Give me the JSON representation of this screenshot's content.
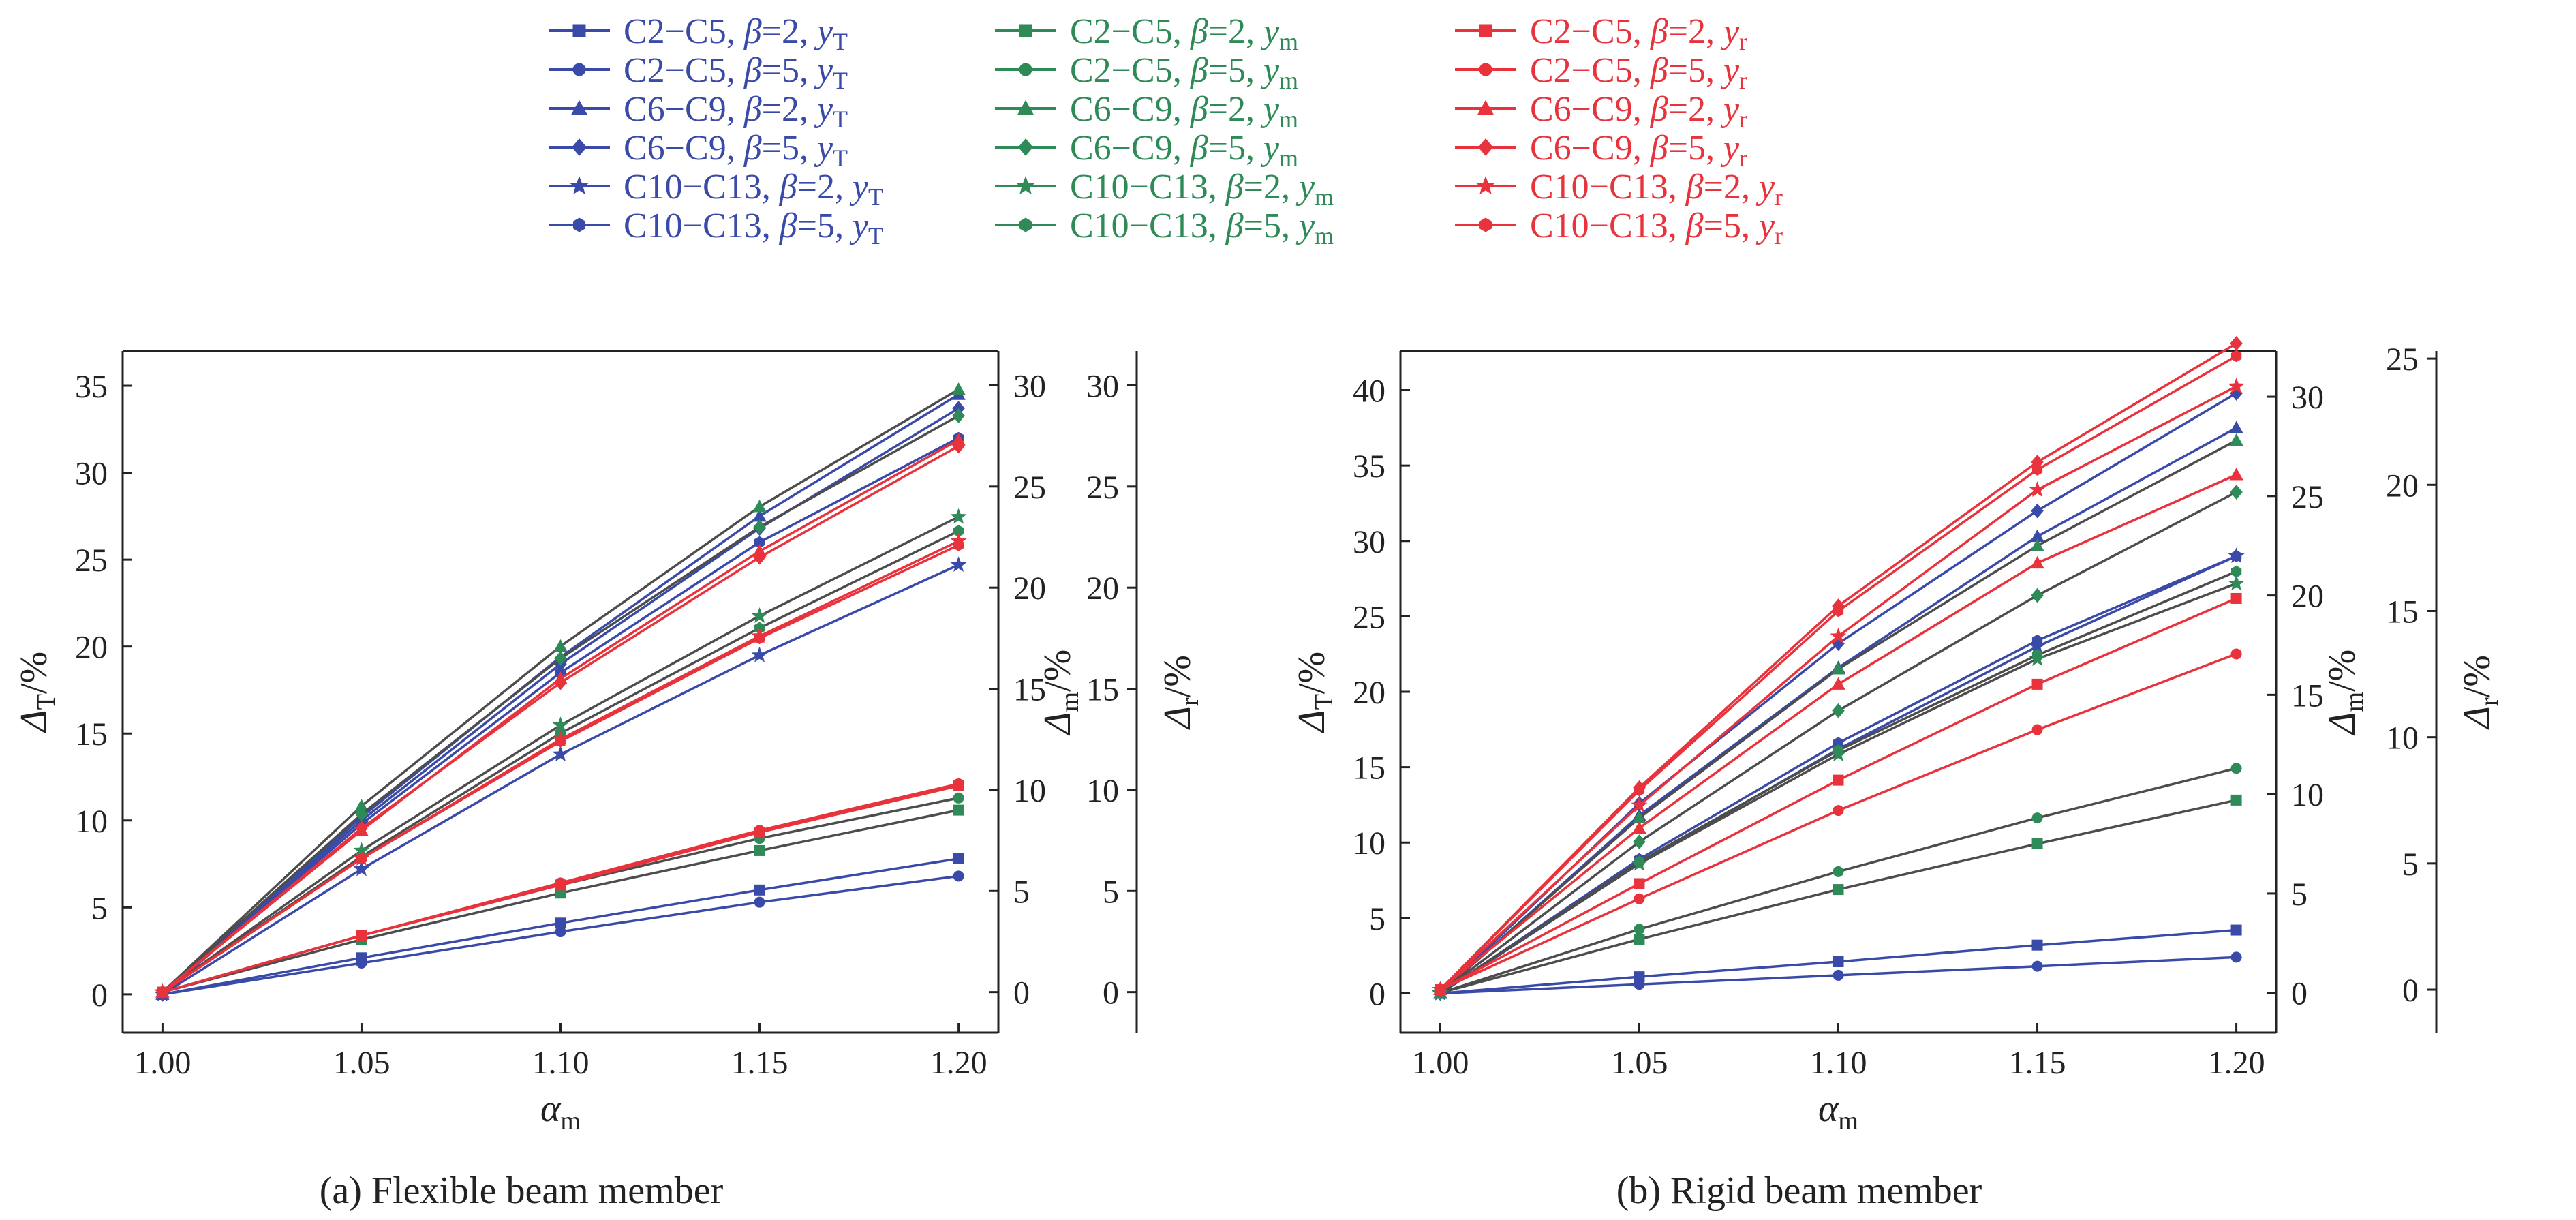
{
  "legend": {
    "columns": [
      {
        "color": "#3a4aa8",
        "entries": [
          {
            "group": "C2−C5",
            "beta": "2",
            "var": "T",
            "marker": "square"
          },
          {
            "group": "C2−C5",
            "beta": "5",
            "var": "T",
            "marker": "circle"
          },
          {
            "group": "C6−C9",
            "beta": "2",
            "var": "T",
            "marker": "triangle"
          },
          {
            "group": "C6−C9",
            "beta": "5",
            "var": "T",
            "marker": "diamond"
          },
          {
            "group": "C10−C13",
            "beta": "2",
            "var": "T",
            "marker": "star"
          },
          {
            "group": "C10−C13",
            "beta": "5",
            "var": "T",
            "marker": "hexagon"
          }
        ]
      },
      {
        "color": "#2e8b57",
        "entries": [
          {
            "group": "C2−C5",
            "beta": "2",
            "var": "m",
            "marker": "square"
          },
          {
            "group": "C2−C5",
            "beta": "5",
            "var": "m",
            "marker": "circle"
          },
          {
            "group": "C6−C9",
            "beta": "2",
            "var": "m",
            "marker": "triangle"
          },
          {
            "group": "C6−C9",
            "beta": "5",
            "var": "m",
            "marker": "diamond"
          },
          {
            "group": "C10−C13",
            "beta": "2",
            "var": "m",
            "marker": "star"
          },
          {
            "group": "C10−C13",
            "beta": "5",
            "var": "m",
            "marker": "hexagon"
          }
        ]
      },
      {
        "color": "#e8323c",
        "entries": [
          {
            "group": "C2−C5",
            "beta": "2",
            "var": "r",
            "marker": "square"
          },
          {
            "group": "C2−C5",
            "beta": "5",
            "var": "r",
            "marker": "circle"
          },
          {
            "group": "C6−C9",
            "beta": "2",
            "var": "r",
            "marker": "triangle"
          },
          {
            "group": "C6−C9",
            "beta": "5",
            "var": "r",
            "marker": "diamond"
          },
          {
            "group": "C10−C13",
            "beta": "2",
            "var": "r",
            "marker": "star"
          },
          {
            "group": "C10−C13",
            "beta": "5",
            "var": "r",
            "marker": "hexagon"
          }
        ]
      }
    ]
  },
  "chart_data": [
    {
      "type": "line",
      "caption": "(a) Flexible beam member",
      "xlabel": "α",
      "xlabel_sub": "m",
      "ylabel_left": "Δ",
      "ylabel_left_sub": "T",
      "ylabel_right1": "Δ",
      "ylabel_right1_sub": "m",
      "ylabel_right2": "Δ",
      "ylabel_right2_sub": "r",
      "unit": "/%",
      "x": [
        1.0,
        1.05,
        1.1,
        1.15,
        1.2
      ],
      "x_ticks": [
        "1.00",
        "1.05",
        "1.10",
        "1.15",
        "1.20"
      ],
      "xlim": [
        0.99,
        1.21
      ],
      "ylim_left": [
        -2.2,
        37
      ],
      "y_ticks_left": [
        0,
        5,
        10,
        15,
        20,
        25,
        30,
        35
      ],
      "ylim_right1": [
        -2,
        31.7
      ],
      "y_ticks_right1": [
        0,
        5,
        10,
        15,
        20,
        25,
        30
      ],
      "ylim_right2": [
        -2,
        31.7
      ],
      "y_ticks_right2": [
        0,
        5,
        10,
        15,
        20,
        25,
        30
      ],
      "series": [
        {
          "column": 0,
          "marker": "square",
          "axis": "left",
          "values": [
            0,
            2.1,
            4.1,
            6.0,
            7.8
          ]
        },
        {
          "column": 0,
          "marker": "circle",
          "axis": "left",
          "values": [
            0,
            1.8,
            3.6,
            5.3,
            6.8
          ]
        },
        {
          "column": 0,
          "marker": "triangle",
          "axis": "left",
          "values": [
            0,
            10.2,
            19.4,
            27.5,
            34.5
          ]
        },
        {
          "column": 0,
          "marker": "diamond",
          "axis": "left",
          "values": [
            0,
            10.0,
            19.0,
            26.8,
            33.7
          ]
        },
        {
          "column": 0,
          "marker": "star",
          "axis": "left",
          "values": [
            0,
            7.2,
            13.8,
            19.5,
            24.7
          ]
        },
        {
          "column": 0,
          "marker": "hexagon",
          "axis": "left",
          "values": [
            0,
            9.8,
            18.5,
            26.0,
            32.0
          ]
        },
        {
          "column": 1,
          "marker": "square",
          "axis": "right1",
          "values": [
            0,
            2.6,
            4.9,
            7.0,
            9.0
          ]
        },
        {
          "column": 1,
          "marker": "circle",
          "axis": "right1",
          "values": [
            0,
            2.8,
            5.3,
            7.6,
            9.6
          ]
        },
        {
          "column": 1,
          "marker": "triangle",
          "axis": "right1",
          "values": [
            0,
            9.2,
            17.1,
            24.0,
            29.8
          ]
        },
        {
          "column": 1,
          "marker": "diamond",
          "axis": "right1",
          "values": [
            0,
            8.8,
            16.5,
            23.0,
            28.5
          ]
        },
        {
          "column": 1,
          "marker": "star",
          "axis": "right1",
          "values": [
            0,
            7.0,
            13.2,
            18.6,
            23.5
          ]
        },
        {
          "column": 1,
          "marker": "hexagon",
          "axis": "right1",
          "values": [
            0,
            6.7,
            12.8,
            18.0,
            22.8
          ]
        },
        {
          "column": 2,
          "marker": "square",
          "axis": "right2",
          "values": [
            0,
            2.8,
            5.3,
            7.9,
            10.2
          ]
        },
        {
          "column": 2,
          "marker": "circle",
          "axis": "right2",
          "values": [
            0,
            2.8,
            5.4,
            8.0,
            10.3
          ]
        },
        {
          "column": 2,
          "marker": "triangle",
          "axis": "right2",
          "values": [
            0,
            8.0,
            15.5,
            21.8,
            27.3
          ]
        },
        {
          "column": 2,
          "marker": "diamond",
          "axis": "right2",
          "values": [
            0,
            8.1,
            15.3,
            21.5,
            27.0
          ]
        },
        {
          "column": 2,
          "marker": "star",
          "axis": "right2",
          "values": [
            0,
            6.6,
            12.5,
            17.6,
            22.3
          ]
        },
        {
          "column": 2,
          "marker": "hexagon",
          "axis": "right2",
          "values": [
            0,
            6.6,
            12.4,
            17.5,
            22.1
          ]
        }
      ]
    },
    {
      "type": "line",
      "caption": "(b) Rigid beam member",
      "xlabel": "α",
      "xlabel_sub": "m",
      "ylabel_left": "Δ",
      "ylabel_left_sub": "T",
      "ylabel_right1": "Δ",
      "ylabel_right1_sub": "m",
      "ylabel_right2": "Δ",
      "ylabel_right2_sub": "r",
      "unit": "/%",
      "x": [
        1.0,
        1.05,
        1.1,
        1.15,
        1.2
      ],
      "x_ticks": [
        "1.00",
        "1.05",
        "1.10",
        "1.15",
        "1.20"
      ],
      "xlim": [
        0.99,
        1.21
      ],
      "ylim_left": [
        -2.6,
        42.6
      ],
      "y_ticks_left": [
        0,
        5,
        10,
        15,
        20,
        25,
        30,
        35,
        40
      ],
      "ylim_right1": [
        -2,
        32.3
      ],
      "y_ticks_right1": [
        0,
        5,
        10,
        15,
        20,
        25,
        30
      ],
      "ylim_right2": [
        -1.7,
        25.3
      ],
      "y_ticks_right2": [
        0,
        5,
        10,
        15,
        20,
        25
      ],
      "series": [
        {
          "column": 0,
          "marker": "square",
          "axis": "left",
          "values": [
            0,
            1.1,
            2.1,
            3.2,
            4.2
          ]
        },
        {
          "column": 0,
          "marker": "circle",
          "axis": "left",
          "values": [
            0,
            0.6,
            1.2,
            1.8,
            2.4
          ]
        },
        {
          "column": 0,
          "marker": "triangle",
          "axis": "left",
          "values": [
            0,
            11.8,
            21.6,
            30.3,
            37.5
          ]
        },
        {
          "column": 0,
          "marker": "diamond",
          "axis": "left",
          "values": [
            0,
            12.6,
            23.2,
            32.0,
            39.8
          ]
        },
        {
          "column": 0,
          "marker": "star",
          "axis": "left",
          "values": [
            0,
            8.6,
            16.2,
            23.0,
            29.0
          ]
        },
        {
          "column": 0,
          "marker": "hexagon",
          "axis": "left",
          "values": [
            0,
            8.9,
            16.6,
            23.4,
            29.0
          ]
        },
        {
          "column": 1,
          "marker": "square",
          "axis": "right1",
          "values": [
            0,
            2.7,
            5.2,
            7.5,
            9.7
          ]
        },
        {
          "column": 1,
          "marker": "circle",
          "axis": "right1",
          "values": [
            0,
            3.2,
            6.1,
            8.8,
            11.3
          ]
        },
        {
          "column": 1,
          "marker": "triangle",
          "axis": "right1",
          "values": [
            0,
            8.8,
            16.3,
            22.5,
            27.8
          ]
        },
        {
          "column": 1,
          "marker": "diamond",
          "axis": "right1",
          "values": [
            0,
            7.6,
            14.2,
            20.0,
            25.2
          ]
        },
        {
          "column": 1,
          "marker": "star",
          "axis": "right1",
          "values": [
            0,
            6.5,
            12.0,
            16.8,
            20.6
          ]
        },
        {
          "column": 1,
          "marker": "hexagon",
          "axis": "right1",
          "values": [
            0,
            6.6,
            12.2,
            17.0,
            21.2
          ]
        },
        {
          "column": 2,
          "marker": "square",
          "axis": "right2",
          "values": [
            0,
            4.2,
            8.3,
            12.1,
            15.5
          ]
        },
        {
          "column": 2,
          "marker": "circle",
          "axis": "right2",
          "values": [
            0,
            3.6,
            7.1,
            10.3,
            13.3
          ]
        },
        {
          "column": 2,
          "marker": "triangle",
          "axis": "right2",
          "values": [
            0,
            6.4,
            12.1,
            16.9,
            20.4
          ]
        },
        {
          "column": 2,
          "marker": "diamond",
          "axis": "right2",
          "values": [
            0,
            8.0,
            15.2,
            20.9,
            25.6
          ]
        },
        {
          "column": 2,
          "marker": "star",
          "axis": "right2",
          "values": [
            0,
            7.3,
            14.0,
            19.8,
            23.9
          ]
        },
        {
          "column": 2,
          "marker": "hexagon",
          "axis": "right2",
          "values": [
            0,
            7.9,
            15.0,
            20.6,
            25.1
          ]
        }
      ]
    }
  ]
}
